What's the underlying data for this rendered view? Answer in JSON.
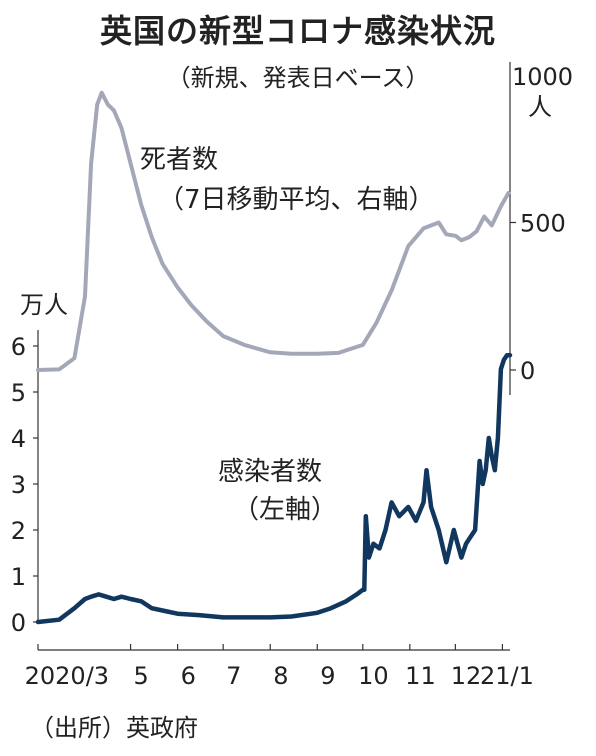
{
  "title": "英国の新型コロナ感染状況",
  "subtitle": "（新規、発表日ベース）",
  "source": "（出所）英政府",
  "chart_data": {
    "type": "line",
    "x_ticks": [
      "2020/3",
      "5",
      "6",
      "7",
      "8",
      "9",
      "10",
      "11",
      "12",
      "21/1"
    ],
    "left_axis": {
      "unit": "万人",
      "ticks": [
        0,
        1,
        2,
        3,
        4,
        5,
        6
      ],
      "ylim": [
        0,
        6.5
      ]
    },
    "right_axis": {
      "unit": "1000人",
      "ticks": [
        0,
        500
      ],
      "ylim": [
        0,
        1000
      ]
    },
    "series": [
      {
        "name": "死者数",
        "note": "（7日移動平均、右軸）",
        "axis": "right",
        "color": "#a3a7b8",
        "x": [
          "2020-03-01",
          "2020-03-15",
          "2020-03-25",
          "2020-04-01",
          "2020-04-05",
          "2020-04-09",
          "2020-04-12",
          "2020-04-16",
          "2020-04-20",
          "2020-04-25",
          "2020-05-01",
          "2020-05-08",
          "2020-05-15",
          "2020-05-22",
          "2020-06-01",
          "2020-06-10",
          "2020-06-20",
          "2020-07-01",
          "2020-07-15",
          "2020-08-01",
          "2020-08-15",
          "2020-09-01",
          "2020-09-15",
          "2020-10-01",
          "2020-10-10",
          "2020-10-20",
          "2020-10-31",
          "2020-11-10",
          "2020-11-20",
          "2020-11-25",
          "2020-12-01",
          "2020-12-05",
          "2020-12-10",
          "2020-12-15",
          "2020-12-20",
          "2020-12-25",
          "2020-12-31",
          "2021-01-05"
        ],
        "y": [
          0,
          2,
          40,
          250,
          700,
          900,
          940,
          900,
          880,
          820,
          700,
          560,
          450,
          360,
          280,
          220,
          165,
          115,
          85,
          60,
          55,
          55,
          58,
          85,
          160,
          270,
          420,
          480,
          500,
          460,
          455,
          440,
          450,
          470,
          520,
          490,
          555,
          600
        ]
      },
      {
        "name": "感染者数",
        "note": "（左軸）",
        "axis": "left",
        "color": "#12375f",
        "x": [
          "2020-03-01",
          "2020-03-15",
          "2020-03-25",
          "2020-04-01",
          "2020-04-05",
          "2020-04-10",
          "2020-04-15",
          "2020-04-20",
          "2020-04-25",
          "2020-05-01",
          "2020-05-08",
          "2020-05-15",
          "2020-05-22",
          "2020-06-01",
          "2020-06-15",
          "2020-07-01",
          "2020-07-15",
          "2020-08-01",
          "2020-08-15",
          "2020-09-01",
          "2020-09-10",
          "2020-09-20",
          "2020-09-27",
          "2020-10-01",
          "2020-10-02",
          "2020-10-03",
          "2020-10-05",
          "2020-10-08",
          "2020-10-12",
          "2020-10-16",
          "2020-10-20",
          "2020-10-25",
          "2020-10-31",
          "2020-11-05",
          "2020-11-10",
          "2020-11-12",
          "2020-11-15",
          "2020-11-20",
          "2020-11-25",
          "2020-11-30",
          "2020-12-05",
          "2020-12-08",
          "2020-12-10",
          "2020-12-14",
          "2020-12-17",
          "2020-12-19",
          "2020-12-21",
          "2020-12-23",
          "2020-12-25",
          "2020-12-27",
          "2020-12-29",
          "2020-12-31",
          "2021-01-02",
          "2021-01-04",
          "2021-01-06"
        ],
        "y": [
          0.0,
          0.05,
          0.3,
          0.5,
          0.55,
          0.6,
          0.55,
          0.5,
          0.55,
          0.5,
          0.45,
          0.3,
          0.25,
          0.18,
          0.15,
          0.1,
          0.1,
          0.1,
          0.12,
          0.2,
          0.3,
          0.45,
          0.6,
          0.7,
          0.7,
          2.3,
          1.4,
          1.7,
          1.6,
          2.0,
          2.6,
          2.3,
          2.5,
          2.2,
          2.6,
          3.3,
          2.5,
          2.0,
          1.3,
          2.0,
          1.4,
          1.7,
          1.8,
          2.0,
          3.5,
          3.0,
          3.3,
          4.0,
          3.6,
          3.3,
          4.0,
          5.5,
          5.7,
          5.8,
          5.8
        ]
      }
    ]
  }
}
